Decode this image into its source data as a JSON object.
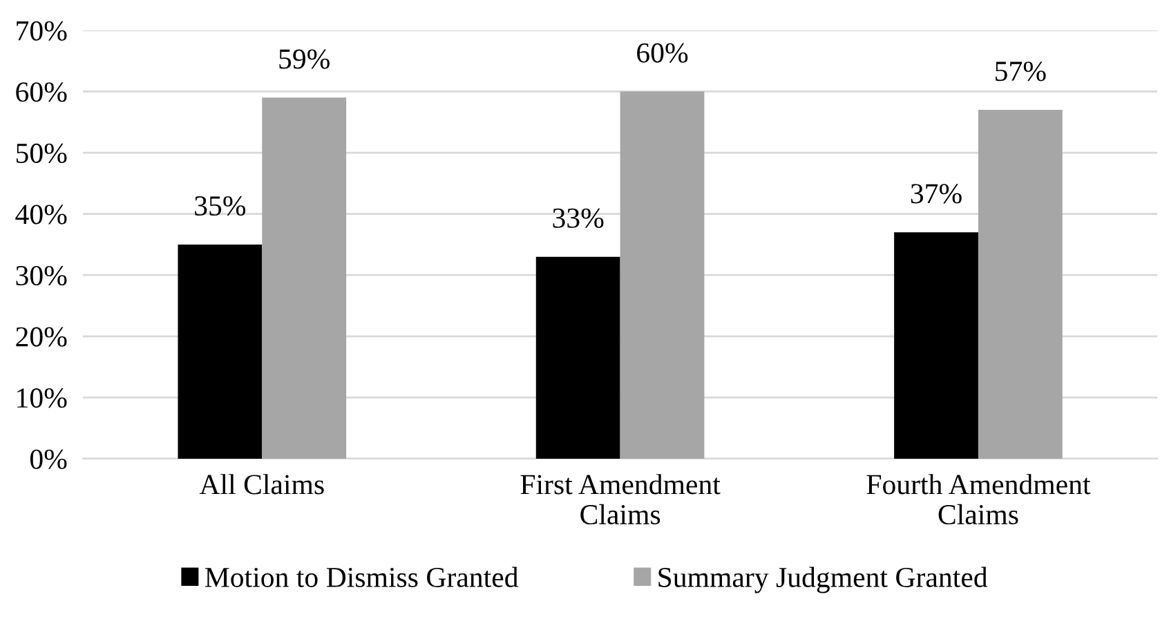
{
  "chart_data": {
    "type": "bar",
    "categories": [
      "All Claims",
      "First Amendment Claims",
      "Fourth Amendment Claims"
    ],
    "series": [
      {
        "name": "Motion to Dismiss Granted",
        "color": "#000000",
        "values": [
          35,
          33,
          37
        ],
        "value_labels": [
          "35%",
          "33%",
          "37%"
        ]
      },
      {
        "name": "Summary Judgment Granted",
        "color": "#a6a6a6",
        "values": [
          59,
          60,
          57
        ],
        "value_labels": [
          "59%",
          "60%",
          "57%"
        ]
      }
    ],
    "ylim": [
      0,
      70
    ],
    "yticks": [
      {
        "value": 0,
        "label": "0%"
      },
      {
        "value": 10,
        "label": "10%"
      },
      {
        "value": 20,
        "label": "20%"
      },
      {
        "value": 30,
        "label": "30%"
      },
      {
        "value": 40,
        "label": "40%"
      },
      {
        "value": 50,
        "label": "50%"
      },
      {
        "value": 60,
        "label": "60%"
      },
      {
        "value": 70,
        "label": "70%"
      }
    ],
    "grid": "y",
    "legend": "bottom"
  }
}
